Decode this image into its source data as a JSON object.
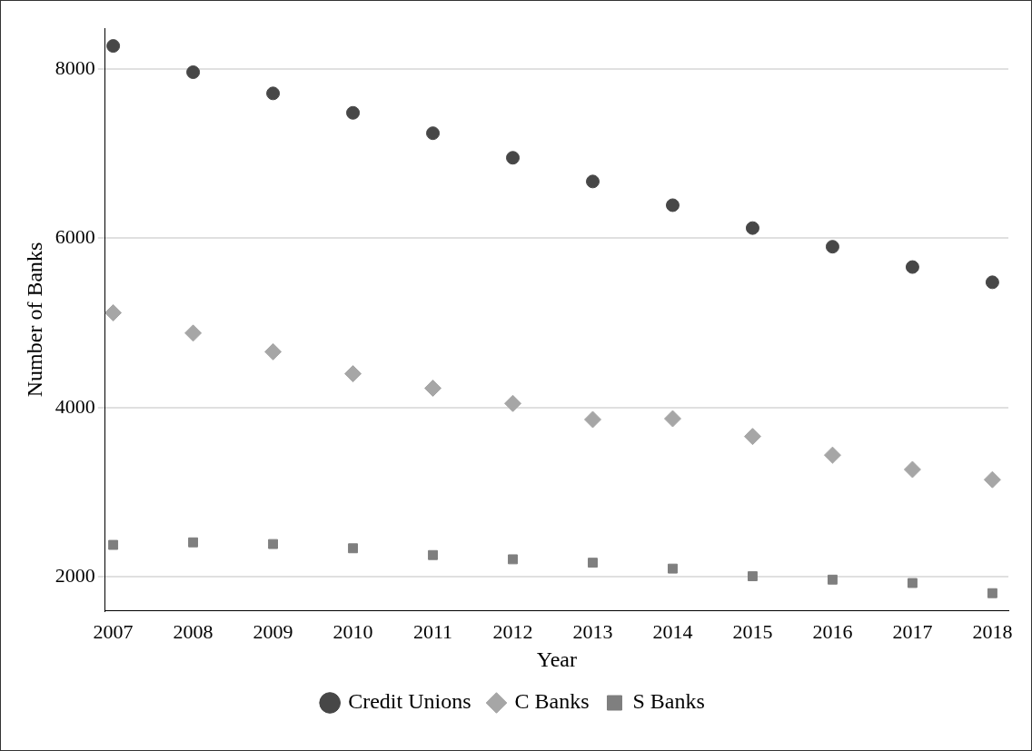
{
  "chart_data": {
    "type": "scatter",
    "xlabel": "Year",
    "ylabel": "Number of Banks",
    "x": [
      2007,
      2008,
      2009,
      2010,
      2011,
      2012,
      2013,
      2014,
      2015,
      2016,
      2017,
      2018
    ],
    "series": [
      {
        "name": "Credit Unions",
        "color": "#474747",
        "marker": "circle",
        "values": [
          8270,
          7960,
          7710,
          7480,
          7240,
          6950,
          6670,
          6390,
          6120,
          5900,
          5660,
          5480
        ]
      },
      {
        "name": "C Banks",
        "color": "#a6a6a6",
        "marker": "diamond",
        "values": [
          5120,
          4880,
          4660,
          4400,
          4230,
          4050,
          3860,
          3870,
          3660,
          3440,
          3270,
          3150
        ]
      },
      {
        "name": "S Banks",
        "color": "#7f7f7f",
        "marker": "square",
        "values": [
          2380,
          2410,
          2390,
          2340,
          2260,
          2210,
          2170,
          2100,
          2010,
          1970,
          1930,
          1810
        ]
      }
    ],
    "xlim": [
      2006.9,
      2018.2
    ],
    "xticks": [
      2007,
      2008,
      2009,
      2010,
      2011,
      2012,
      2013,
      2014,
      2015,
      2016,
      2017,
      2018
    ],
    "ylim": [
      1600,
      8480
    ],
    "yticks": [
      2000,
      4000,
      6000,
      8000
    ],
    "grid": "y",
    "legend": "bottom"
  }
}
